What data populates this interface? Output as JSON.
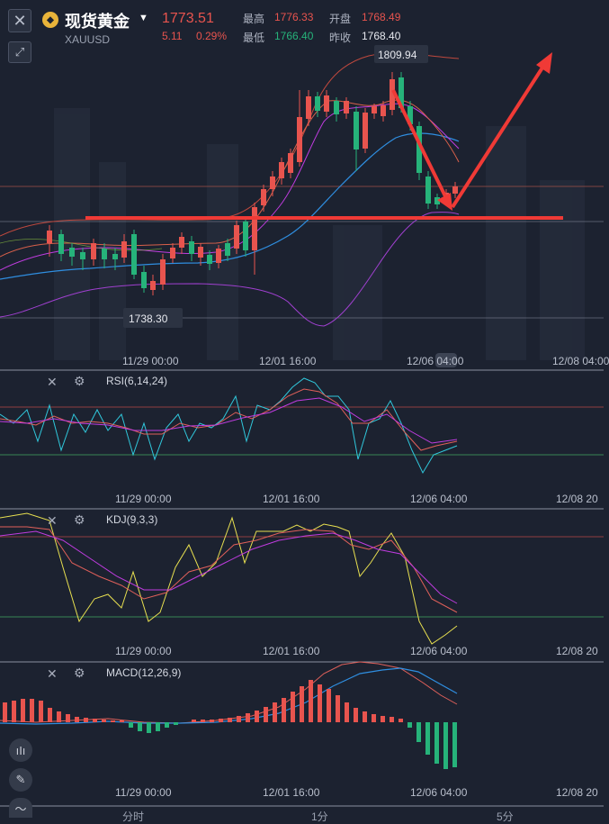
{
  "header": {
    "title": "现货黄金",
    "symbol": "XAUUSD",
    "price": "1773.51",
    "change": "5.11",
    "change_pct": "0.29%",
    "high_label": "最高",
    "high_value": "1776.33",
    "open_label": "开盘",
    "open_value": "1768.49",
    "low_label": "最低",
    "low_value": "1766.40",
    "prev_close_label": "昨收",
    "prev_close_value": "1768.40"
  },
  "main_chart": {
    "max_label": "1809.94",
    "min_label": "1738.30",
    "x_labels": [
      "11/29 00:00",
      "12/01 16:00",
      "12/06 04:00",
      "12/08 04:00"
    ]
  },
  "rsi": {
    "label": "RSI(6,14,24)",
    "x_labels": [
      "11/29 00:00",
      "12/01 16:00",
      "12/06 04:00",
      "12/08 20"
    ]
  },
  "kdj": {
    "label": "KDJ(9,3,3)",
    "x_labels": [
      "11/29 00:00",
      "12/01 16:00",
      "12/06 04:00",
      "12/08 20"
    ]
  },
  "macd": {
    "label": "MACD(12,26,9)",
    "x_labels": [
      "11/29 00:00",
      "12/01 16:00",
      "12/06 04:00",
      "12/08 20"
    ]
  },
  "bottom_tabs": [
    "分时",
    "1分",
    "5分"
  ],
  "colors": {
    "up": "#e8544e",
    "down": "#26b37a",
    "background": "#1c2230"
  },
  "icons": {
    "close": "close-icon",
    "expand": "expand-icon",
    "settings": "gear-icon"
  }
}
